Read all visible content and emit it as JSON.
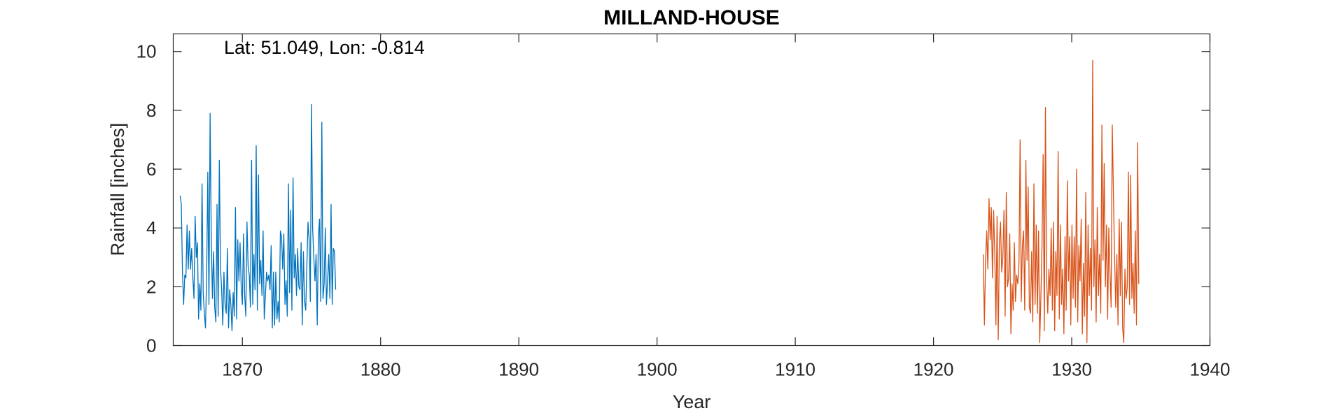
{
  "chart_data": {
    "type": "line",
    "title": "MILLAND-HOUSE",
    "xlabel": "Year",
    "ylabel": "Rainfall [inches]",
    "annotation": "Lat: 51.049, Lon: -0.814",
    "xlim": [
      1865,
      1940
    ],
    "ylim": [
      0,
      10.6
    ],
    "x_ticks": [
      1870,
      1880,
      1890,
      1900,
      1910,
      1920,
      1930,
      1940
    ],
    "x_tick_labels": [
      "1870",
      "1880",
      "1890",
      "1900",
      "1910",
      "1920",
      "1930",
      "1940"
    ],
    "y_ticks": [
      0,
      2,
      4,
      6,
      8,
      10
    ],
    "y_tick_labels": [
      "0",
      "2",
      "4",
      "6",
      "8",
      "10"
    ],
    "grid": false,
    "legend": "none",
    "series": [
      {
        "color": "#0072BD",
        "x_start": 1865.5,
        "x_step": 0.0833333,
        "values": [
          5.1,
          4.8,
          2.5,
          1.4,
          2.4,
          2.3,
          4.1,
          2.6,
          3.9,
          2.6,
          3.3,
          2.3,
          1.6,
          4.4,
          3.0,
          3.5,
          0.9,
          2.1,
          1.2,
          5.5,
          1.8,
          1.1,
          0.6,
          2.4,
          5.9,
          1.4,
          7.9,
          3.7,
          1.6,
          3.2,
          1.3,
          0.8,
          4.8,
          1.0,
          6.3,
          2.7,
          1.9,
          0.7,
          2.5,
          1.4,
          1.1,
          3.3,
          0.6,
          1.9,
          1.4,
          0.5,
          1.8,
          1.0,
          4.7,
          0.9,
          3.6,
          2.2,
          3.5,
          2.0,
          1.4,
          3.8,
          1.7,
          1.0,
          4.2,
          2.7,
          2.4,
          1.3,
          6.3,
          1.4,
          3.1,
          1.9,
          6.8,
          1.2,
          5.8,
          2.1,
          2.9,
          1.7,
          3.9,
          0.9,
          1.7,
          2.5,
          2.2,
          2.4,
          1.9,
          3.4,
          0.6,
          2.5,
          0.7,
          2.5,
          0.9,
          1.5,
          0.8,
          3.9,
          3.7,
          2.6,
          3.8,
          1.4,
          2.2,
          1.0,
          5.5,
          1.8,
          4.6,
          1.2,
          5.7,
          2.3,
          3.1,
          1.7,
          3.3,
          2.0,
          1.9,
          3.5,
          0.7,
          3.2,
          1.5,
          1.2,
          2.7,
          4.2,
          3.6,
          1.5,
          8.2,
          4.0,
          3.0,
          2.2,
          3.1,
          0.7,
          3.7,
          4.3,
          1.5,
          7.6,
          1.6,
          2.1,
          4.0,
          1.4,
          2.2,
          3.1,
          1.6,
          4.8,
          1.4,
          3.3,
          3.2,
          1.9
        ]
      },
      {
        "color": "#D95319",
        "x_start": 1923.6,
        "x_step": 0.0833333,
        "values": [
          3.1,
          0.7,
          2.9,
          3.9,
          2.6,
          5.0,
          3.6,
          4.7,
          2.3,
          4.6,
          3.1,
          0.7,
          4.4,
          0.2,
          3.5,
          4.2,
          2.5,
          3.0,
          4.6,
          1.0,
          5.2,
          2.0,
          2.3,
          3.8,
          0.4,
          2.1,
          1.2,
          3.5,
          1.5,
          2.4,
          2.1,
          2.8,
          7.0,
          1.5,
          3.4,
          3.9,
          1.2,
          6.3,
          2.9,
          5.4,
          1.3,
          1.1,
          3.2,
          0.8,
          5.5,
          1.4,
          4.1,
          1.1,
          3.9,
          0.1,
          1.6,
          3.4,
          6.5,
          0.5,
          8.1,
          2.3,
          1.1,
          2.6,
          1.7,
          4.0,
          1.2,
          4.2,
          0.5,
          3.2,
          1.7,
          6.6,
          0.9,
          4.1,
          1.4,
          2.6,
          0.4,
          3.7,
          1.2,
          5.6,
          2.2,
          3.7,
          0.7,
          4.1,
          1.6,
          3.7,
          1.3,
          6.0,
          0.8,
          3.4,
          2.2,
          4.3,
          0.4,
          2.8,
          1.0,
          5.2,
          0.1,
          4.1,
          1.7,
          3.3,
          1.2,
          9.7,
          2.0,
          3.6,
          0.8,
          4.7,
          1.7,
          3.1,
          1.1,
          7.5,
          2.9,
          6.2,
          2.0,
          4.1,
          0.9,
          4.0,
          2.5,
          1.3,
          7.5,
          5.2,
          3.0,
          1.3,
          3.1,
          0.7,
          4.3,
          1.7,
          4.2,
          0.6,
          0.1,
          2.6,
          1.6,
          2.0,
          5.9,
          1.4,
          5.8,
          1.6,
          2.8,
          1.1,
          3.9,
          0.7,
          6.9,
          2.1
        ]
      }
    ]
  }
}
